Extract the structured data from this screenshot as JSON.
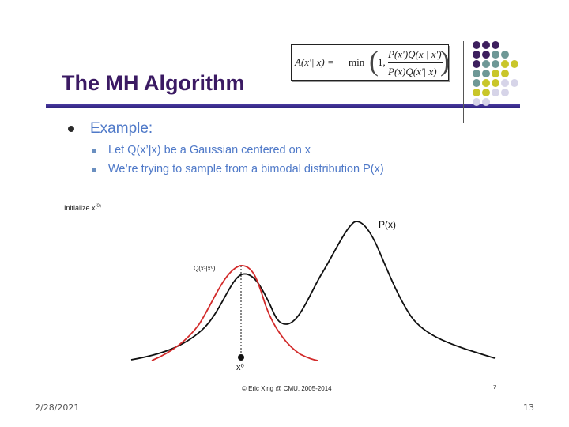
{
  "slide": {
    "title": "The MH Algorithm",
    "formula": {
      "lhs": "A(x'| x) =",
      "min": "min",
      "one": "1,",
      "numerator": "P(x')Q(x | x')",
      "denominator": "P(x)Q(x'| x)"
    },
    "bullet": "Example:",
    "sub_bullets": [
      "Let Q(x’|x) be a Gaussian centered on x",
      "We’re trying to sample from a bimodal distribution P(x)"
    ],
    "figure": {
      "initialize_label": "Initialize x",
      "initialize_sup": "(0)",
      "ellipsis": "…",
      "q_label": "Q(x¹|x⁰)",
      "p_label": "P(x)",
      "x_label": "x⁰",
      "credit": "© Eric Xing @ CMU, 2005-2014",
      "inner_page": "7"
    },
    "footer": {
      "date": "2/28/2021",
      "page": "13"
    },
    "colors": {
      "title": "#3b1a63",
      "bullet_text": "#4f79c8",
      "proposal_curve": "#d22a2a",
      "target_curve": "#111111",
      "dot_purple": "#3d1f5e",
      "dot_teal": "#6e9896",
      "dot_yellow": "#c9c62a",
      "dot_lavender": "#d6d4e8"
    }
  }
}
